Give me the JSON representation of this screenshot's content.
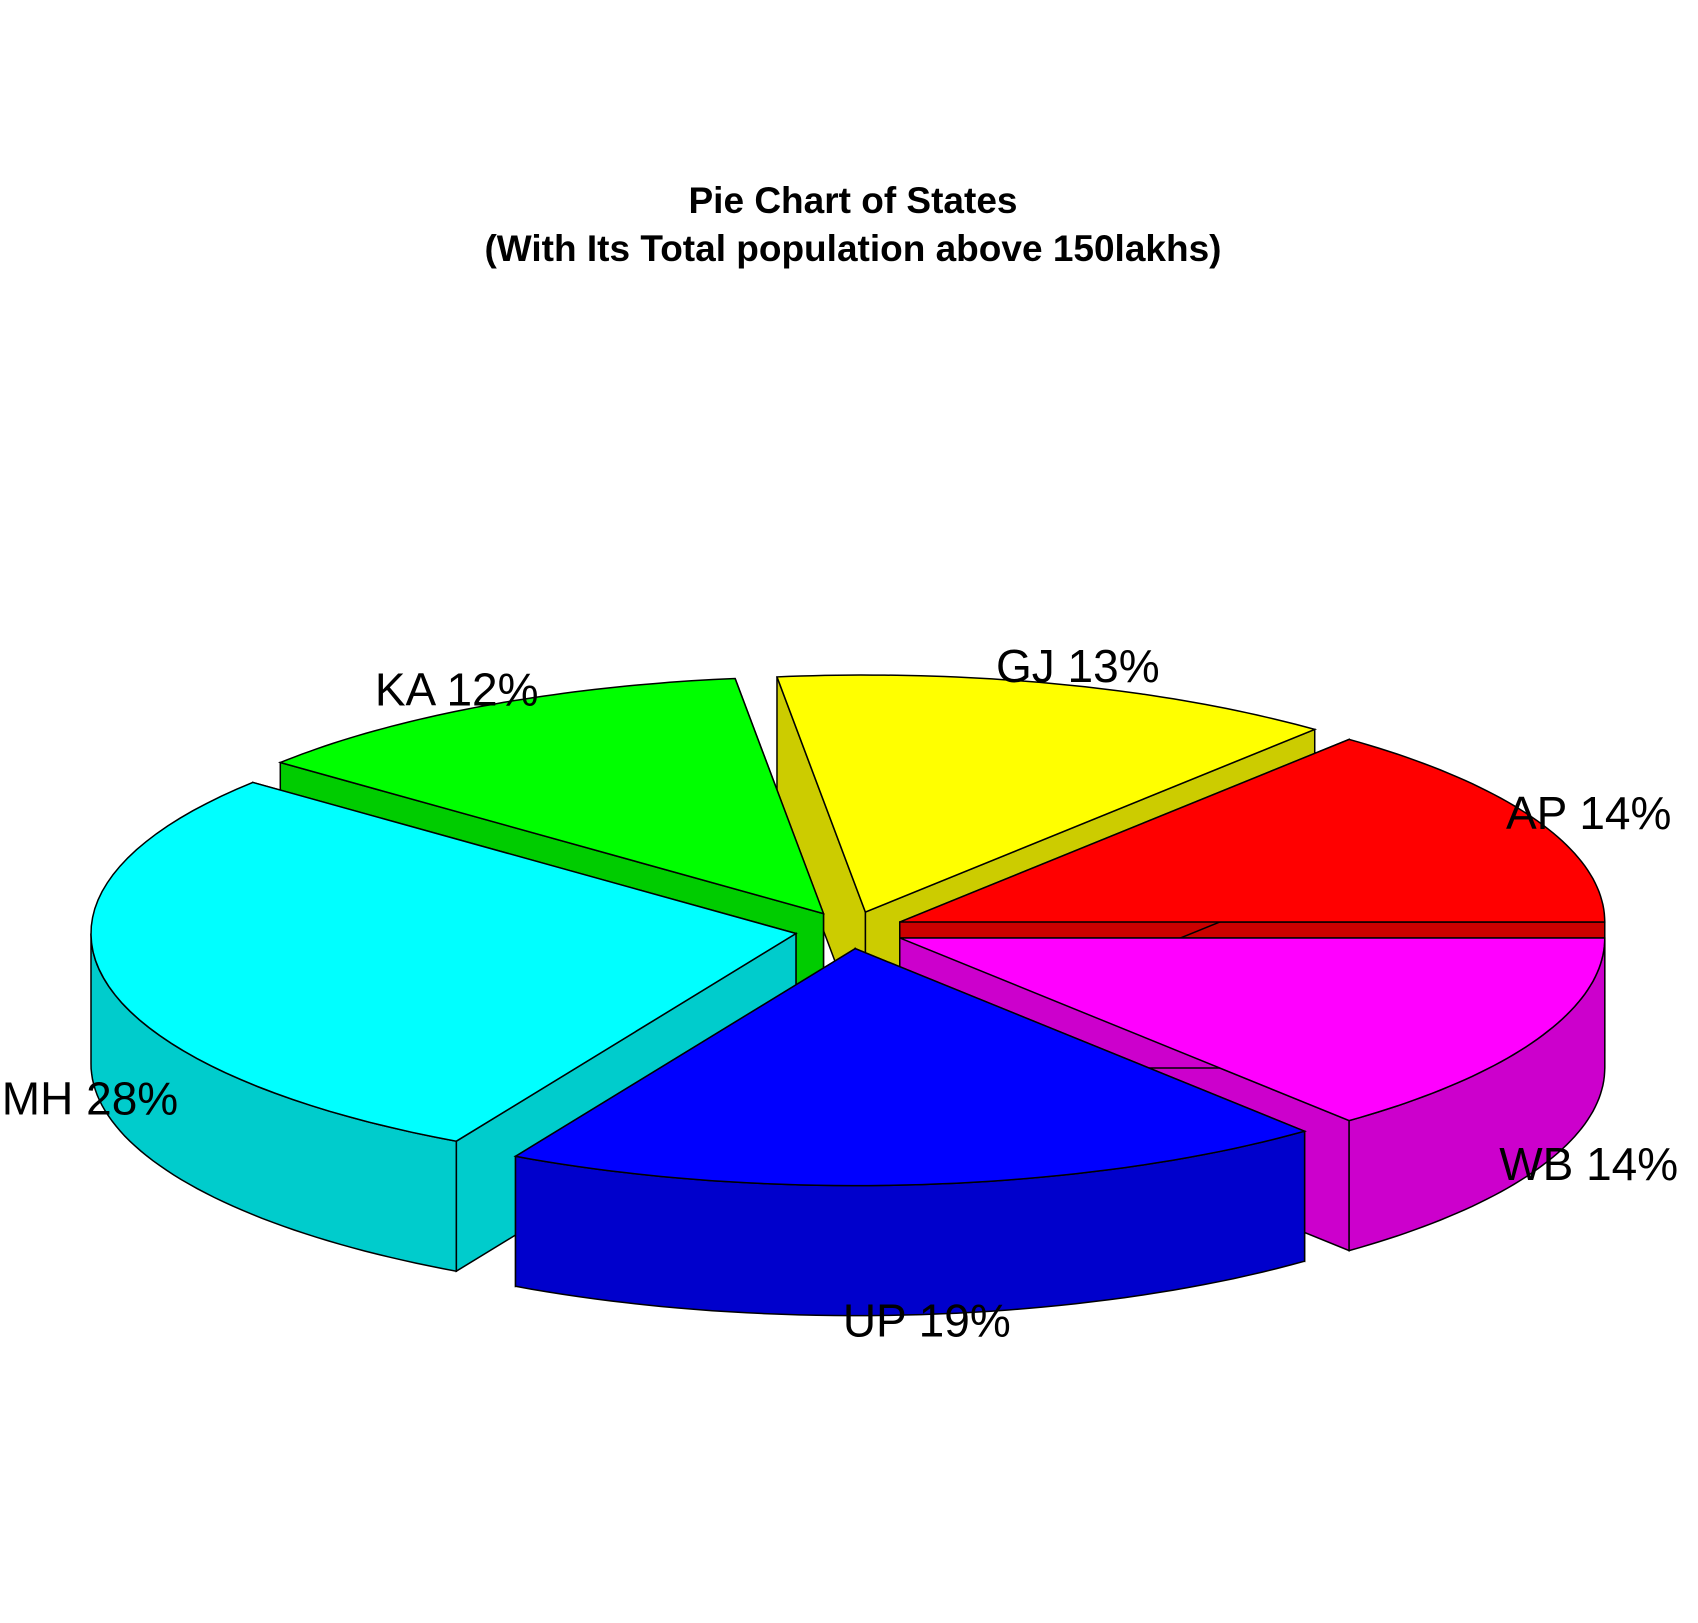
{
  "chart_data": {
    "type": "pie",
    "style": "3d-exploded",
    "title": "Pie Chart of States",
    "subtitle": "(With Its Total population above 150lakhs)",
    "slices": [
      {
        "label": "AP",
        "percent": 14,
        "display": "AP 14%",
        "color": "#ff0000",
        "side_color": "#cc0000"
      },
      {
        "label": "GJ",
        "percent": 13,
        "display": "GJ 13%",
        "color": "#ffff00",
        "side_color": "#cccc00"
      },
      {
        "label": "KA",
        "percent": 12,
        "display": "KA 12%",
        "color": "#00ff00",
        "side_color": "#00cc00"
      },
      {
        "label": "MH",
        "percent": 28,
        "display": "MH 28%",
        "color": "#00ffff",
        "side_color": "#00cccc"
      },
      {
        "label": "UP",
        "percent": 19,
        "display": "UP 19%",
        "color": "#0000ff",
        "side_color": "#0000cc"
      },
      {
        "label": "WB",
        "percent": 14,
        "display": "WB 14%",
        "color": "#ff00ff",
        "side_color": "#cc00cc"
      }
    ]
  }
}
